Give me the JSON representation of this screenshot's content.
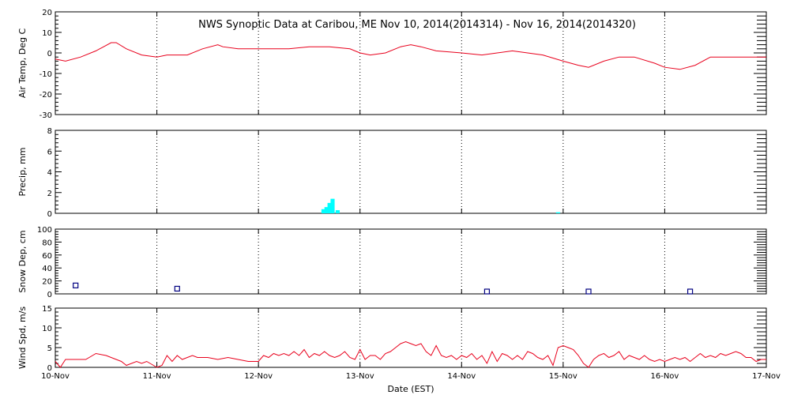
{
  "chart_data": {
    "type": "line",
    "title": "NWS Synoptic Data at Caribou, ME   Nov 10, 2014(2014314) - Nov 16, 2014(2014320)",
    "xlabel": "Date (EST)",
    "x_ticks": [
      "10-Nov",
      "11-Nov",
      "12-Nov",
      "13-Nov",
      "14-Nov",
      "15-Nov",
      "16-Nov",
      "17-Nov"
    ],
    "x_range_days": [
      0,
      7
    ],
    "grid": "dotted vertical lines at day boundaries",
    "panels": [
      {
        "name": "air-temp",
        "type": "line",
        "ylabel": "Air Temp, Deg C",
        "ylim": [
          -30,
          20
        ],
        "yticks": [
          "-30",
          "-20",
          "-10",
          "0",
          "10",
          "20"
        ],
        "color": "#e8001c",
        "x": [
          0,
          0.1,
          0.25,
          0.4,
          0.55,
          0.6,
          0.7,
          0.85,
          1.0,
          1.1,
          1.3,
          1.45,
          1.6,
          1.65,
          1.8,
          2.0,
          2.3,
          2.5,
          2.7,
          2.9,
          3.0,
          3.1,
          3.25,
          3.4,
          3.5,
          3.6,
          3.75,
          4.0,
          4.2,
          4.35,
          4.5,
          4.65,
          4.8,
          5.0,
          5.15,
          5.25,
          5.4,
          5.55,
          5.7,
          5.9,
          6.0,
          6.15,
          6.3,
          6.45,
          6.6,
          6.75,
          6.9,
          7.0
        ],
        "y": [
          -3,
          -4,
          -2,
          1,
          5,
          5,
          2,
          -1,
          -2,
          -1,
          -1,
          2,
          4,
          3,
          2,
          2,
          2,
          3,
          3,
          2,
          0,
          -1,
          0,
          3,
          4,
          3,
          1,
          0,
          -1,
          0,
          1,
          0,
          -1,
          -4,
          -6,
          -7,
          -4,
          -2,
          -2,
          -5,
          -7,
          -8,
          -6,
          -2,
          -2,
          -2,
          -2,
          -2
        ]
      },
      {
        "name": "precip",
        "type": "bar",
        "ylabel": "Precip, mm",
        "ylim": [
          0,
          8
        ],
        "yticks": [
          "0",
          "2",
          "4",
          "6",
          "8"
        ],
        "color": "#00ffff",
        "x": [
          2.64,
          2.67,
          2.7,
          2.73,
          2.78,
          4.95
        ],
        "values": [
          0.4,
          0.6,
          1.0,
          1.4,
          0.3,
          0.1
        ],
        "bar_width_days": 0.04
      },
      {
        "name": "snow-depth",
        "type": "scatter",
        "ylabel": "Snow Dep, cm",
        "ylim": [
          0,
          100
        ],
        "yticks": [
          "0",
          "20",
          "40",
          "60",
          "80",
          "100"
        ],
        "color": "#000080",
        "x": [
          0.2,
          1.2,
          4.25,
          5.25,
          6.25
        ],
        "y": [
          13,
          8,
          0,
          0,
          0
        ]
      },
      {
        "name": "wind-speed",
        "type": "line",
        "ylabel": "Wind Spd, m/s",
        "ylim": [
          0,
          15
        ],
        "yticks": [
          "0",
          "5",
          "10",
          "15"
        ],
        "color": "#e8001c",
        "x": [
          0,
          0.05,
          0.1,
          0.2,
          0.3,
          0.4,
          0.5,
          0.6,
          0.65,
          0.7,
          0.8,
          0.85,
          0.9,
          1.0,
          1.05,
          1.1,
          1.15,
          1.2,
          1.25,
          1.3,
          1.35,
          1.4,
          1.5,
          1.6,
          1.7,
          1.8,
          1.9,
          2.0,
          2.05,
          2.1,
          2.15,
          2.2,
          2.25,
          2.3,
          2.35,
          2.4,
          2.45,
          2.5,
          2.55,
          2.6,
          2.65,
          2.7,
          2.75,
          2.8,
          2.85,
          2.9,
          2.95,
          3.0,
          3.05,
          3.1,
          3.15,
          3.2,
          3.25,
          3.3,
          3.35,
          3.4,
          3.45,
          3.5,
          3.55,
          3.6,
          3.65,
          3.7,
          3.75,
          3.8,
          3.85,
          3.9,
          3.95,
          4.0,
          4.05,
          4.1,
          4.15,
          4.2,
          4.25,
          4.3,
          4.35,
          4.4,
          4.45,
          4.5,
          4.55,
          4.6,
          4.65,
          4.7,
          4.75,
          4.8,
          4.85,
          4.9,
          4.95,
          5.0,
          5.05,
          5.1,
          5.15,
          5.2,
          5.25,
          5.3,
          5.35,
          5.4,
          5.45,
          5.5,
          5.55,
          5.6,
          5.65,
          5.7,
          5.75,
          5.8,
          5.85,
          5.9,
          5.95,
          6.0,
          6.05,
          6.1,
          6.15,
          6.2,
          6.25,
          6.3,
          6.35,
          6.4,
          6.45,
          6.5,
          6.55,
          6.6,
          6.65,
          6.7,
          6.75,
          6.8,
          6.85,
          6.9,
          6.95,
          7.0
        ],
        "y": [
          1.5,
          0,
          2,
          2,
          2,
          3.5,
          3,
          2,
          1.5,
          0.5,
          1.5,
          1,
          1.5,
          0,
          0.5,
          3,
          1.5,
          3,
          2,
          2.5,
          3,
          2.5,
          2.5,
          2,
          2.5,
          2,
          1.5,
          1.5,
          3,
          2.5,
          3.5,
          3,
          3.5,
          3,
          4,
          3,
          4.5,
          2.5,
          3.5,
          3,
          4,
          3,
          2.5,
          3,
          4,
          2.5,
          2,
          4.5,
          2,
          3,
          3,
          2,
          3.5,
          4,
          5,
          6,
          6.5,
          6,
          5.5,
          6,
          4,
          3,
          5.5,
          3,
          2.5,
          3,
          2,
          3,
          2.5,
          3.5,
          2,
          3,
          1,
          4,
          1.5,
          3.5,
          3,
          2,
          3,
          2,
          4,
          3.5,
          2.5,
          2,
          3,
          0.5,
          5,
          5.5,
          5,
          4.5,
          3,
          1,
          0,
          2,
          3,
          3.5,
          2.5,
          3,
          4,
          2,
          3,
          2.5,
          2,
          3,
          2,
          1.5,
          2,
          1.5,
          2,
          2.5,
          2,
          2.5,
          1.5,
          2.5,
          3.5,
          2.5,
          3,
          2.5,
          3.5,
          3,
          3.5,
          4,
          3.5,
          2.5,
          2.5,
          1.5,
          2,
          2
        ]
      }
    ]
  }
}
